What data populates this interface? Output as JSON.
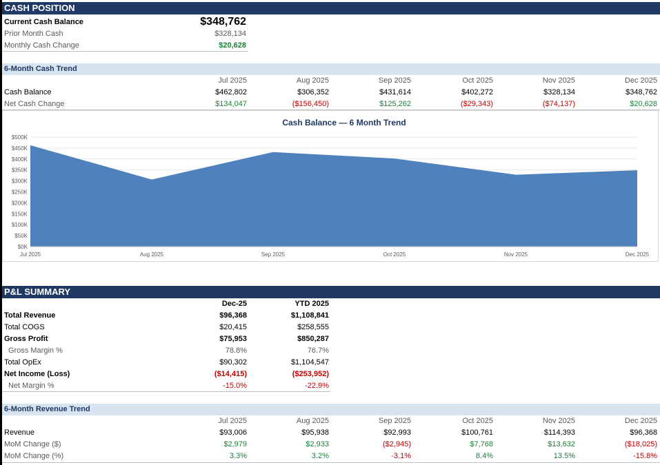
{
  "cash_position": {
    "title": "CASH POSITION",
    "current_label": "Current Cash Balance",
    "current_value": "$348,762",
    "prior_label": "Prior Month Cash",
    "prior_value": "$328,134",
    "change_label": "Monthly Cash Change",
    "change_value": "$20,628"
  },
  "cash_trend": {
    "title": "6-Month Cash Trend",
    "months": [
      "Jul 2025",
      "Aug 2025",
      "Sep 2025",
      "Oct 2025",
      "Nov 2025",
      "Dec 2025"
    ],
    "balance_label": "Cash Balance",
    "balances": [
      "$462,802",
      "$306,352",
      "$431,614",
      "$402,272",
      "$328,134",
      "$348,762"
    ],
    "net_label": "Net Cash Change",
    "net_changes": [
      "$134,047",
      "($156,450)",
      "$125,262",
      "($29,343)",
      "($74,137)",
      "$20,628"
    ]
  },
  "chart_data": {
    "type": "area",
    "title": "Cash Balance — 6 Month Trend",
    "categories": [
      "Jul 2025",
      "Aug 2025",
      "Sep 2025",
      "Oct 2025",
      "Nov 2025",
      "Dec 2025"
    ],
    "values": [
      462802,
      306352,
      431614,
      402272,
      328134,
      348762
    ],
    "ylim": [
      0,
      500000
    ],
    "yticks": [
      "$0K",
      "$50K",
      "$100K",
      "$150K",
      "$200K",
      "$250K",
      "$300K",
      "$350K",
      "$400K",
      "$450K",
      "$500K"
    ],
    "xticks": [
      "Jul 2025",
      "Aug 2025",
      "Sep 2025",
      "Oct 2025",
      "Nov 2025",
      "Dec 2025"
    ],
    "color": "#4f81bd",
    "grid": true,
    "legend": "none"
  },
  "pl_summary": {
    "title": "P&L SUMMARY",
    "col1": "Dec-25",
    "col2": "YTD 2025",
    "rows": [
      {
        "label": "Total Revenue",
        "a": "$96,368",
        "b": "$1,108,841"
      },
      {
        "label": "Total COGS",
        "a": "$20,415",
        "b": "$258,555"
      },
      {
        "label": "Gross Profit",
        "a": "$75,953",
        "b": "$850,287"
      },
      {
        "label": "Gross Margin %",
        "a": "78.8%",
        "b": "76.7%"
      },
      {
        "label": "Total OpEx",
        "a": "$90,302",
        "b": "$1,104,547"
      },
      {
        "label": "Net Income (Loss)",
        "a": "($14,415)",
        "b": "($253,952)"
      },
      {
        "label": "Net Margin %",
        "a": "-15.0%",
        "b": "-22.9%"
      }
    ]
  },
  "revenue_trend": {
    "title": "6-Month Revenue Trend",
    "months": [
      "Jul 2025",
      "Aug 2025",
      "Sep 2025",
      "Oct 2025",
      "Nov 2025",
      "Dec 2025"
    ],
    "revenue_label": "Revenue",
    "revenue": [
      "$93,006",
      "$95,938",
      "$92,993",
      "$100,761",
      "$114,393",
      "$96,368"
    ],
    "mom_label": "MoM Change ($)",
    "mom": [
      "$2,979",
      "$2,933",
      "($2,945)",
      "$7,768",
      "$13,632",
      "($18,025)"
    ],
    "mom_pct_label": "MoM Change (%)",
    "mom_pct": [
      "3.3%",
      "3.2%",
      "-3.1%",
      "8.4%",
      "13.5%",
      "-15.8%"
    ]
  },
  "colors": {
    "header": "#1f3864",
    "subheader": "#d6e4f0",
    "positive": "#1a7f37",
    "negative": "#c00000",
    "area": "#4f81bd"
  }
}
